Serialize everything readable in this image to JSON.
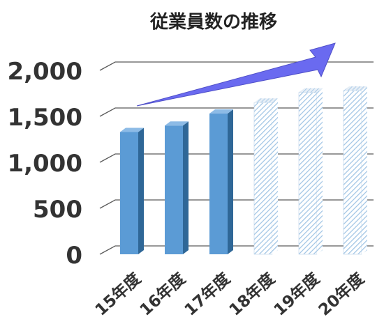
{
  "chart_data": {
    "type": "bar",
    "title": "従業員数の推移",
    "categories": [
      "15年度",
      "16年度",
      "17年度",
      "18年度",
      "19年度",
      "20年度"
    ],
    "values": [
      1330,
      1400,
      1530,
      1650,
      1760,
      1780
    ],
    "actual_count": 3,
    "ylim": [
      0,
      2000
    ],
    "yticks": [
      "0",
      "500",
      "1,000",
      "1,500",
      "2,000"
    ],
    "ytick_values": [
      0,
      500,
      1000,
      1500,
      2000
    ],
    "grid": true,
    "legend": "none",
    "colors": {
      "actual_front": "#5b9bd5",
      "actual_side": "#2f6797",
      "actual_top": "#8dbbe6",
      "forecast_stripe": "#9ec3e4",
      "forecast_bg": "#ffffff",
      "arrow": "#6a6af0",
      "grid": "#5a5a5a",
      "text": "#333333"
    },
    "icons": {
      "trend_arrow": "upward-trend-arrow"
    }
  }
}
